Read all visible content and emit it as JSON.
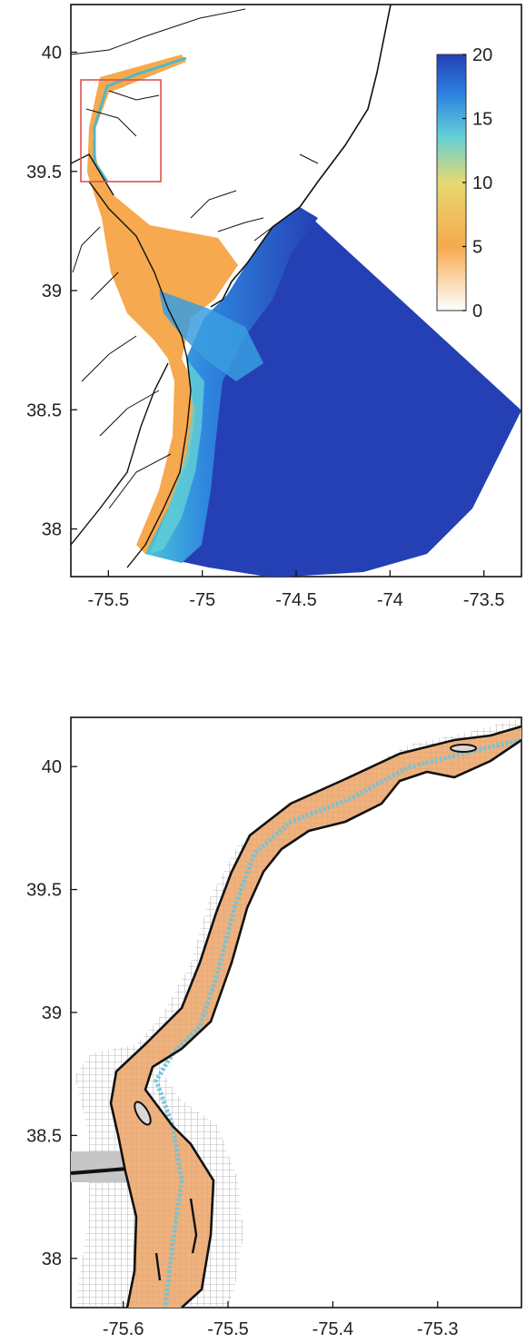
{
  "colors": {
    "ocean_deep": "#2440b4",
    "shallow": "#f6a94e",
    "coast": "#111111",
    "inset_box": "#d9534f",
    "grid": "#9a9a9a"
  },
  "icons": [
    "colorbar",
    "inset-box"
  ],
  "chart_data": [
    {
      "type": "heatmap",
      "title": "",
      "xlabel": "",
      "ylabel": "",
      "xlim": [
        -75.7,
        -73.3
      ],
      "ylim": [
        37.8,
        40.2
      ],
      "x_ticks": [
        "-75.5",
        "-75",
        "-74.5",
        "-74",
        "-73.5"
      ],
      "y_ticks": [
        "40",
        "39.5",
        "39",
        "38.5",
        "38"
      ],
      "colorbar": {
        "range": [
          0,
          20
        ],
        "ticks": [
          "0",
          "5",
          "10",
          "15",
          "20"
        ],
        "colormap": [
          "#ffffff",
          "#f6a94e",
          "#e6d870",
          "#62d0d6",
          "#2b7fe0",
          "#2440b4"
        ]
      },
      "inset_box": {
        "lon": [
          -75.67,
          -75.22
        ],
        "lat": [
          39.47,
          39.9
        ]
      }
    },
    {
      "type": "heatmap",
      "title": "",
      "xlabel": "",
      "ylabel": "",
      "xlim": [
        -75.65,
        -75.22
      ],
      "ylim": [
        37.8,
        40.2
      ],
      "x_ticks": [
        "-75.6",
        "-75.5",
        "-75.4",
        "-75.3"
      ],
      "y_ticks": [
        "40",
        "39.5",
        "39",
        "38.5",
        "38"
      ]
    }
  ]
}
